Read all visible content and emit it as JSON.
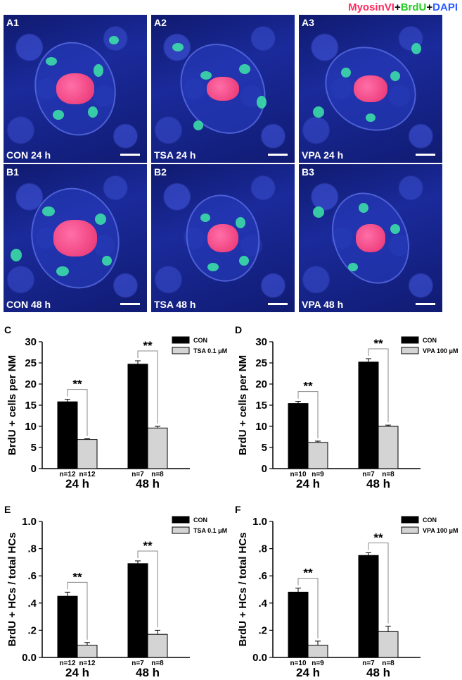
{
  "figure_legend": {
    "parts": [
      {
        "text": "MyosinVI",
        "color": "#ff2a5f"
      },
      {
        "text": "+",
        "color": "#000000"
      },
      {
        "text": "BrdU",
        "color": "#22cc22"
      },
      {
        "text": "+",
        "color": "#000000"
      },
      {
        "text": "DAPI",
        "color": "#2a5cff"
      }
    ]
  },
  "panels": [
    {
      "id": "A1",
      "caption": "CON 24 h"
    },
    {
      "id": "A2",
      "caption": "TSA 24 h"
    },
    {
      "id": "A3",
      "caption": "VPA 24 h"
    },
    {
      "id": "B1",
      "caption": "CON 48 h"
    },
    {
      "id": "B2",
      "caption": "TSA 48 h"
    },
    {
      "id": "B3",
      "caption": "VPA 48 h"
    }
  ],
  "chart_data": [
    {
      "id": "C",
      "type": "bar",
      "ylabel": "BrdU + cells per NM",
      "ylim": [
        0,
        30
      ],
      "yticks": [
        "0",
        "5",
        "10",
        "15",
        "20",
        "25",
        "30"
      ],
      "ytick_values": [
        0,
        5,
        10,
        15,
        20,
        25,
        30
      ],
      "categories": [
        "24 h",
        "48 h"
      ],
      "legend_position": "top-right",
      "series": [
        {
          "name": "CON",
          "color": "#000000",
          "values": [
            15.8,
            24.7
          ],
          "errors": [
            0.6,
            0.8
          ],
          "n": [
            "n=12",
            "n=7"
          ]
        },
        {
          "name": "TSA 0.1 μM",
          "color": "#d4d4d4",
          "values": [
            6.9,
            9.6
          ],
          "errors": [
            0.15,
            0.4
          ],
          "n": [
            "n=12",
            "n=8"
          ]
        }
      ],
      "significance": [
        "**",
        "**"
      ]
    },
    {
      "id": "D",
      "type": "bar",
      "ylabel": "BrdU + cells per NM",
      "ylim": [
        0,
        30
      ],
      "yticks": [
        "0",
        "5",
        "10",
        "15",
        "20",
        "25",
        "30"
      ],
      "ytick_values": [
        0,
        5,
        10,
        15,
        20,
        25,
        30
      ],
      "categories": [
        "24 h",
        "48 h"
      ],
      "legend_position": "top-right",
      "series": [
        {
          "name": "CON",
          "color": "#000000",
          "values": [
            15.4,
            25.2
          ],
          "errors": [
            0.5,
            0.8
          ],
          "n": [
            "n=10",
            "n=7"
          ]
        },
        {
          "name": "VPA 100 μM",
          "color": "#d4d4d4",
          "values": [
            6.2,
            10.0
          ],
          "errors": [
            0.3,
            0.3
          ],
          "n": [
            "n=9",
            "n=8"
          ]
        }
      ],
      "significance": [
        "**",
        "**"
      ]
    },
    {
      "id": "E",
      "type": "bar",
      "ylabel": "BrdU + HCs / total HCs",
      "ylim": [
        0,
        1.0
      ],
      "yticks": [
        "0.0",
        ".2",
        ".4",
        ".6",
        ".8",
        "1.0"
      ],
      "ytick_values": [
        0,
        0.2,
        0.4,
        0.6,
        0.8,
        1.0
      ],
      "categories": [
        "24 h",
        "48 h"
      ],
      "legend_position": "top-right",
      "series": [
        {
          "name": "CON",
          "color": "#000000",
          "values": [
            0.45,
            0.69
          ],
          "errors": [
            0.03,
            0.02
          ],
          "n": [
            "n=12",
            "n=7"
          ]
        },
        {
          "name": "TSA 0.1 μM",
          "color": "#d4d4d4",
          "values": [
            0.09,
            0.17
          ],
          "errors": [
            0.02,
            0.03
          ],
          "n": [
            "n=12",
            "n=8"
          ]
        }
      ],
      "significance": [
        "**",
        "**"
      ]
    },
    {
      "id": "F",
      "type": "bar",
      "ylabel": "BrdU + HCs / total HCs",
      "ylim": [
        0,
        1.0
      ],
      "yticks": [
        "0.0",
        ".2",
        ".4",
        ".6",
        ".8",
        "1.0"
      ],
      "ytick_values": [
        0,
        0.2,
        0.4,
        0.6,
        0.8,
        1.0
      ],
      "categories": [
        "24 h",
        "48 h"
      ],
      "legend_position": "top-right",
      "series": [
        {
          "name": "CON",
          "color": "#000000",
          "values": [
            0.48,
            0.75
          ],
          "errors": [
            0.03,
            0.02
          ],
          "n": [
            "n=10",
            "n=7"
          ]
        },
        {
          "name": "VPA 100 μM",
          "color": "#d4d4d4",
          "values": [
            0.09,
            0.19
          ],
          "errors": [
            0.03,
            0.04
          ],
          "n": [
            "n=9",
            "n=8"
          ]
        }
      ],
      "significance": [
        "**",
        "**"
      ]
    }
  ]
}
